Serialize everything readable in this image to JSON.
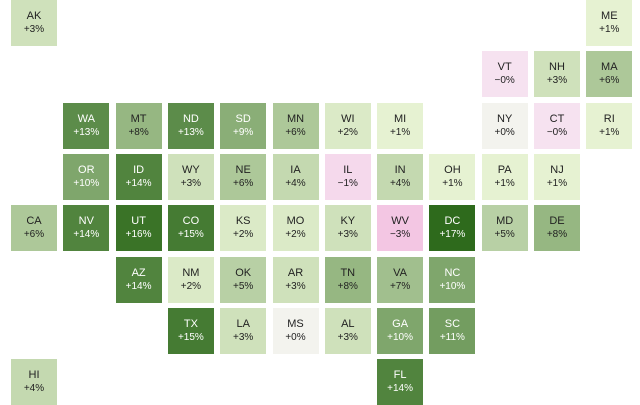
{
  "tiles": [
    {
      "state": "AK",
      "value": "+3%",
      "pct": 3,
      "row": 0,
      "col": 0
    },
    {
      "state": "ME",
      "value": "+1%",
      "pct": 1,
      "row": 0,
      "col": 11
    },
    {
      "state": "VT",
      "value": "−0%",
      "pct": -0.1,
      "row": 1,
      "col": 9
    },
    {
      "state": "NH",
      "value": "+3%",
      "pct": 3,
      "row": 1,
      "col": 10
    },
    {
      "state": "MA",
      "value": "+6%",
      "pct": 6,
      "row": 1,
      "col": 11
    },
    {
      "state": "WA",
      "value": "+13%",
      "pct": 13,
      "row": 2,
      "col": 1
    },
    {
      "state": "MT",
      "value": "+8%",
      "pct": 8,
      "row": 2,
      "col": 2
    },
    {
      "state": "ND",
      "value": "+13%",
      "pct": 13,
      "row": 2,
      "col": 3
    },
    {
      "state": "SD",
      "value": "+9%",
      "pct": 9,
      "row": 2,
      "col": 4
    },
    {
      "state": "MN",
      "value": "+6%",
      "pct": 6,
      "row": 2,
      "col": 5
    },
    {
      "state": "WI",
      "value": "+2%",
      "pct": 2,
      "row": 2,
      "col": 6
    },
    {
      "state": "MI",
      "value": "+1%",
      "pct": 1,
      "row": 2,
      "col": 7
    },
    {
      "state": "NY",
      "value": "+0%",
      "pct": 0,
      "row": 2,
      "col": 9
    },
    {
      "state": "CT",
      "value": "−0%",
      "pct": -0.1,
      "row": 2,
      "col": 10
    },
    {
      "state": "RI",
      "value": "+1%",
      "pct": 1,
      "row": 2,
      "col": 11
    },
    {
      "state": "OR",
      "value": "+10%",
      "pct": 10,
      "row": 3,
      "col": 1
    },
    {
      "state": "ID",
      "value": "+14%",
      "pct": 14,
      "row": 3,
      "col": 2
    },
    {
      "state": "WY",
      "value": "+3%",
      "pct": 3,
      "row": 3,
      "col": 3
    },
    {
      "state": "NE",
      "value": "+6%",
      "pct": 6,
      "row": 3,
      "col": 4
    },
    {
      "state": "IA",
      "value": "+4%",
      "pct": 4,
      "row": 3,
      "col": 5
    },
    {
      "state": "IL",
      "value": "−1%",
      "pct": -1,
      "row": 3,
      "col": 6
    },
    {
      "state": "IN",
      "value": "+4%",
      "pct": 4,
      "row": 3,
      "col": 7
    },
    {
      "state": "OH",
      "value": "+1%",
      "pct": 1,
      "row": 3,
      "col": 8
    },
    {
      "state": "PA",
      "value": "+1%",
      "pct": 1,
      "row": 3,
      "col": 9
    },
    {
      "state": "NJ",
      "value": "+1%",
      "pct": 1,
      "row": 3,
      "col": 10
    },
    {
      "state": "CA",
      "value": "+6%",
      "pct": 6,
      "row": 4,
      "col": 0
    },
    {
      "state": "NV",
      "value": "+14%",
      "pct": 14,
      "row": 4,
      "col": 1
    },
    {
      "state": "UT",
      "value": "+16%",
      "pct": 16,
      "row": 4,
      "col": 2
    },
    {
      "state": "CO",
      "value": "+15%",
      "pct": 15,
      "row": 4,
      "col": 3
    },
    {
      "state": "KS",
      "value": "+2%",
      "pct": 2,
      "row": 4,
      "col": 4
    },
    {
      "state": "MO",
      "value": "+2%",
      "pct": 2,
      "row": 4,
      "col": 5
    },
    {
      "state": "KY",
      "value": "+3%",
      "pct": 3,
      "row": 4,
      "col": 6
    },
    {
      "state": "WV",
      "value": "−3%",
      "pct": -3,
      "row": 4,
      "col": 7
    },
    {
      "state": "DC",
      "value": "+17%",
      "pct": 17,
      "row": 4,
      "col": 8
    },
    {
      "state": "MD",
      "value": "+5%",
      "pct": 5,
      "row": 4,
      "col": 9
    },
    {
      "state": "DE",
      "value": "+8%",
      "pct": 8,
      "row": 4,
      "col": 10
    },
    {
      "state": "AZ",
      "value": "+14%",
      "pct": 14,
      "row": 5,
      "col": 2
    },
    {
      "state": "NM",
      "value": "+2%",
      "pct": 2,
      "row": 5,
      "col": 3
    },
    {
      "state": "OK",
      "value": "+5%",
      "pct": 5,
      "row": 5,
      "col": 4
    },
    {
      "state": "AR",
      "value": "+3%",
      "pct": 3,
      "row": 5,
      "col": 5
    },
    {
      "state": "TN",
      "value": "+8%",
      "pct": 8,
      "row": 5,
      "col": 6
    },
    {
      "state": "VA",
      "value": "+7%",
      "pct": 7,
      "row": 5,
      "col": 7
    },
    {
      "state": "NC",
      "value": "+10%",
      "pct": 10,
      "row": 5,
      "col": 8
    },
    {
      "state": "TX",
      "value": "+15%",
      "pct": 15,
      "row": 6,
      "col": 3
    },
    {
      "state": "LA",
      "value": "+3%",
      "pct": 3,
      "row": 6,
      "col": 4
    },
    {
      "state": "MS",
      "value": "+0%",
      "pct": 0,
      "row": 6,
      "col": 5
    },
    {
      "state": "AL",
      "value": "+3%",
      "pct": 3,
      "row": 6,
      "col": 6
    },
    {
      "state": "GA",
      "value": "+10%",
      "pct": 10,
      "row": 6,
      "col": 7
    },
    {
      "state": "SC",
      "value": "+11%",
      "pct": 11,
      "row": 6,
      "col": 8
    },
    {
      "state": "HI",
      "value": "+4%",
      "pct": 4,
      "row": 7,
      "col": 0
    },
    {
      "state": "FL",
      "value": "+14%",
      "pct": 14,
      "row": 7,
      "col": 7
    }
  ],
  "colors": {
    "negative_light": "#f6e3f0",
    "negative_dark": "#f3c6e3",
    "neutral": "#f3f3ee",
    "positive_light": "#e6f2d2",
    "positive_dark": "#2e6a1c",
    "text_dark": "#222222",
    "text_light": "#ffffff"
  }
}
